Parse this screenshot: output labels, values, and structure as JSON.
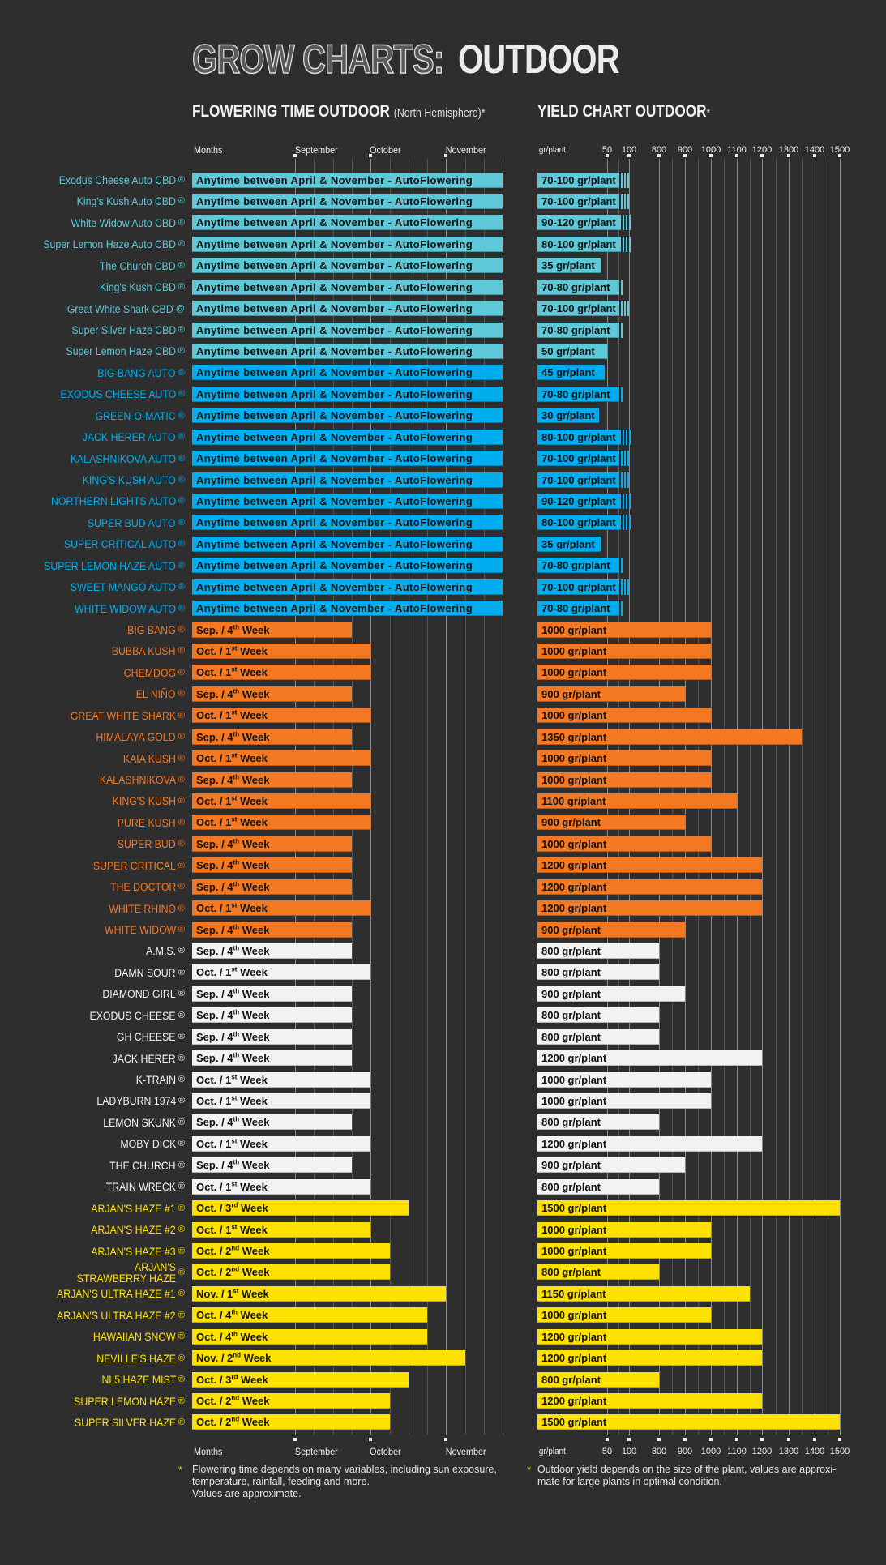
{
  "header": {
    "title_outline": "GROW CHARTS:",
    "title_solid": "OUTDOOR"
  },
  "registered_mark": "®",
  "groups": {
    "cbd": {
      "color": "#5ec8d8"
    },
    "auto": {
      "color": "#00aeef"
    },
    "orange": {
      "color": "#f47721"
    },
    "white": {
      "color": "#f2f2f2"
    },
    "yellow": {
      "color": "#ffe100"
    }
  },
  "chart_data": {
    "type": "bar",
    "flowering": {
      "title": "FLOWERING TIME OUTDOOR",
      "subtitle": "(North Hemisphere)*",
      "xlabel": "Months",
      "x_ticks": [
        "September",
        "October",
        "November"
      ]
    },
    "yield": {
      "title": "YIELD CHART OUTDOOR",
      "title_mark": "*",
      "xlabel": "gr/plant",
      "x_ticks": [
        50,
        100,
        800,
        900,
        1000,
        1100,
        1200,
        1300,
        1400,
        1500
      ]
    },
    "rows": [
      {
        "group": "cbd",
        "name": "Exodus Cheese Auto CBD",
        "flowering": "Anytime between April & November - AutoFlowering",
        "yield": "70-100 gr/plant",
        "min": 70,
        "max": 100
      },
      {
        "group": "cbd",
        "name": "King's Kush Auto CBD",
        "flowering": "Anytime between April & November - AutoFlowering",
        "yield": "70-100 gr/plant",
        "min": 70,
        "max": 100
      },
      {
        "group": "cbd",
        "name": "White Widow Auto CBD",
        "flowering": "Anytime between April & November - AutoFlowering",
        "yield": "90-120 gr/plant",
        "min": 90,
        "max": 120
      },
      {
        "group": "cbd",
        "name": "Super Lemon Haze Auto CBD",
        "flowering": "Anytime between April & November - AutoFlowering",
        "yield": "80-100 gr/plant",
        "min": 80,
        "max": 100
      },
      {
        "group": "cbd",
        "name": "The Church CBD",
        "flowering": "Anytime between April & November - AutoFlowering",
        "yield": "35 gr/plant",
        "min": 35,
        "max": 35
      },
      {
        "group": "cbd",
        "name": "King's Kush CBD",
        "flowering": "Anytime between April & November - AutoFlowering",
        "yield": "70-80 gr/plant",
        "min": 70,
        "max": 80
      },
      {
        "group": "cbd",
        "name": "Great White Shark CBD",
        "mark": "@",
        "flowering": "Anytime between April & November - AutoFlowering",
        "yield": "70-100 gr/plant",
        "min": 70,
        "max": 100
      },
      {
        "group": "cbd",
        "name": "Super Silver Haze CBD",
        "flowering": "Anytime between April & November - AutoFlowering",
        "yield": "70-80 gr/plant",
        "min": 70,
        "max": 80
      },
      {
        "group": "cbd",
        "name": "Super Lemon Haze CBD",
        "flowering": "Anytime between April & November - AutoFlowering",
        "yield": "50 gr/plant",
        "min": 50,
        "max": 50
      },
      {
        "group": "auto",
        "name": "BIG BANG AUTO",
        "flowering": "Anytime between April & November - AutoFlowering",
        "yield": "45 gr/plant",
        "min": 45,
        "max": 45
      },
      {
        "group": "auto",
        "name": "EXODUS CHEESE AUTO",
        "flowering": "Anytime between April & November - AutoFlowering",
        "yield": "70-80 gr/plant",
        "min": 70,
        "max": 80
      },
      {
        "group": "auto",
        "name": "GREEN-O-MATIC",
        "flowering": "Anytime between April & November - AutoFlowering",
        "yield": "30 gr/plant",
        "min": 30,
        "max": 30
      },
      {
        "group": "auto",
        "name": "JACK HERER AUTO",
        "flowering": "Anytime between April & November - AutoFlowering",
        "yield": "80-100 gr/plant",
        "min": 80,
        "max": 100
      },
      {
        "group": "auto",
        "name": "KALASHNIKOVA AUTO",
        "flowering": "Anytime between April & November - AutoFlowering",
        "yield": "70-100 gr/plant",
        "min": 70,
        "max": 100
      },
      {
        "group": "auto",
        "name": "KING'S KUSH AUTO",
        "flowering": "Anytime between April & November - AutoFlowering",
        "yield": "70-100 gr/plant",
        "min": 70,
        "max": 100
      },
      {
        "group": "auto",
        "name": "NORTHERN LIGHTS AUTO",
        "flowering": "Anytime between April & November - AutoFlowering",
        "yield": "90-120 gr/plant",
        "min": 90,
        "max": 120
      },
      {
        "group": "auto",
        "name": "SUPER BUD AUTO",
        "flowering": "Anytime between April & November - AutoFlowering",
        "yield": "80-100 gr/plant",
        "min": 80,
        "max": 100
      },
      {
        "group": "auto",
        "name": "SUPER CRITICAL AUTO",
        "flowering": "Anytime between April & November - AutoFlowering",
        "yield": "35 gr/plant",
        "min": 35,
        "max": 35
      },
      {
        "group": "auto",
        "name": "SUPER LEMON HAZE AUTO",
        "flowering": "Anytime between April & November - AutoFlowering",
        "yield": "70-80 gr/plant",
        "min": 70,
        "max": 80
      },
      {
        "group": "auto",
        "name": "SWEET MANGO AUTO",
        "flowering": "Anytime between April & November - AutoFlowering",
        "yield": "70-100 gr/plant",
        "min": 70,
        "max": 100
      },
      {
        "group": "auto",
        "name": "WHITE WIDOW AUTO",
        "flowering": "Anytime between April & November - AutoFlowering",
        "yield": "70-80 gr/plant",
        "min": 70,
        "max": 80
      },
      {
        "group": "orange",
        "name": "BIG BANG",
        "flowering": "Sep. / 4th Week",
        "yield": "1000 gr/plant",
        "min": 1000,
        "max": 1000
      },
      {
        "group": "orange",
        "name": "BUBBA KUSH",
        "flowering": "Oct. / 1st Week",
        "yield": "1000 gr/plant",
        "min": 1000,
        "max": 1000
      },
      {
        "group": "orange",
        "name": "CHEMDOG",
        "flowering": "Oct. / 1st Week",
        "yield": "1000 gr/plant",
        "min": 1000,
        "max": 1000
      },
      {
        "group": "orange",
        "name": "EL NIÑO",
        "flowering": "Sep. / 4th Week",
        "yield": "900 gr/plant",
        "min": 900,
        "max": 900
      },
      {
        "group": "orange",
        "name": "GREAT WHITE SHARK",
        "flowering": "Oct. / 1st Week",
        "yield": "1000 gr/plant",
        "min": 1000,
        "max": 1000
      },
      {
        "group": "orange",
        "name": "HIMALAYA GOLD",
        "flowering": "Sep. / 4th Week",
        "yield": "1350 gr/plant",
        "min": 1350,
        "max": 1350
      },
      {
        "group": "orange",
        "name": "KAIA KUSH",
        "flowering": "Oct. / 1st Week",
        "yield": "1000 gr/plant",
        "min": 1000,
        "max": 1000
      },
      {
        "group": "orange",
        "name": "KALASHNIKOVA",
        "flowering": "Sep. / 4th Week",
        "yield": "1000 gr/plant",
        "min": 1000,
        "max": 1000
      },
      {
        "group": "orange",
        "name": "KING'S KUSH",
        "flowering": "Oct. / 1st Week",
        "yield": "1100 gr/plant",
        "min": 1100,
        "max": 1100
      },
      {
        "group": "orange",
        "name": "PURE KUSH",
        "flowering": "Oct. / 1st Week",
        "yield": "900 gr/plant",
        "min": 900,
        "max": 900
      },
      {
        "group": "orange",
        "name": "SUPER BUD",
        "flowering": "Sep. / 4th Week",
        "yield": "1000 gr/plant",
        "min": 1000,
        "max": 1000
      },
      {
        "group": "orange",
        "name": "SUPER CRITICAL",
        "flowering": "Sep. / 4th Week",
        "yield": "1200 gr/plant",
        "min": 1200,
        "max": 1200
      },
      {
        "group": "orange",
        "name": "THE DOCTOR",
        "flowering": "Sep. / 4th Week",
        "yield": "1200 gr/plant",
        "min": 1200,
        "max": 1200
      },
      {
        "group": "orange",
        "name": "WHITE RHINO",
        "flowering": "Oct. / 1st Week",
        "yield": "1200 gr/plant",
        "min": 1200,
        "max": 1200
      },
      {
        "group": "orange",
        "name": "WHITE WIDOW",
        "flowering": "Sep. / 4th Week",
        "yield": "900 gr/plant",
        "min": 900,
        "max": 900
      },
      {
        "group": "white",
        "name": "A.M.S.",
        "flowering": "Sep. / 4th Week",
        "yield": "800 gr/plant",
        "min": 800,
        "max": 800
      },
      {
        "group": "white",
        "name": "DAMN SOUR",
        "flowering": "Oct. / 1st Week",
        "yield": "800 gr/plant",
        "min": 800,
        "max": 800
      },
      {
        "group": "white",
        "name": "DIAMOND GIRL",
        "flowering": "Sep. / 4th Week",
        "yield": "900 gr/plant",
        "min": 900,
        "max": 900
      },
      {
        "group": "white",
        "name": "EXODUS CHEESE",
        "flowering": "Sep. / 4th Week",
        "yield": "800 gr/plant",
        "min": 800,
        "max": 800
      },
      {
        "group": "white",
        "name": "GH CHEESE",
        "flowering": "Sep. / 4th Week",
        "yield": "800 gr/plant",
        "min": 800,
        "max": 800
      },
      {
        "group": "white",
        "name": "JACK HERER",
        "flowering": "Sep. / 4th Week",
        "yield": "1200 gr/plant",
        "min": 1200,
        "max": 1200
      },
      {
        "group": "white",
        "name": "K-TRAIN",
        "flowering": "Oct. / 1st Week",
        "yield": "1000 gr/plant",
        "min": 1000,
        "max": 1000
      },
      {
        "group": "white",
        "name": "LADYBURN 1974",
        "flowering": "Oct. / 1st Week",
        "yield": "1000 gr/plant",
        "min": 1000,
        "max": 1000
      },
      {
        "group": "white",
        "name": "LEMON SKUNK",
        "flowering": "Sep. / 4th Week",
        "yield": "800 gr/plant",
        "min": 800,
        "max": 800
      },
      {
        "group": "white",
        "name": "MOBY DICK",
        "flowering": "Oct. / 1st Week",
        "yield": "1200 gr/plant",
        "min": 1200,
        "max": 1200
      },
      {
        "group": "white",
        "name": "THE CHURCH",
        "flowering": "Sep. / 4th Week",
        "yield": "900 gr/plant",
        "min": 900,
        "max": 900
      },
      {
        "group": "white",
        "name": "TRAIN WRECK",
        "flowering": "Oct. / 1st Week",
        "yield": "800 gr/plant",
        "min": 800,
        "max": 800
      },
      {
        "group": "yellow",
        "name": "ARJAN'S HAZE #1",
        "flowering": "Oct. / 3rd Week",
        "yield": "1500 gr/plant",
        "min": 1500,
        "max": 1500
      },
      {
        "group": "yellow",
        "name": "ARJAN'S HAZE #2",
        "flowering": "Oct. / 1st Week",
        "yield": "1000 gr/plant",
        "min": 1000,
        "max": 1000
      },
      {
        "group": "yellow",
        "name": "ARJAN'S HAZE #3",
        "flowering": "Oct. / 2nd Week",
        "yield": "1000 gr/plant",
        "min": 1000,
        "max": 1000
      },
      {
        "group": "yellow",
        "name": "ARJAN'S\nSTRAWBERRY HAZE",
        "flowering": "Oct. / 2nd Week",
        "yield": "800 gr/plant",
        "min": 800,
        "max": 800
      },
      {
        "group": "yellow",
        "name": "ARJAN'S ULTRA HAZE #1",
        "flowering": "Nov. / 1st Week",
        "yield": "1150 gr/plant",
        "min": 1150,
        "max": 1150
      },
      {
        "group": "yellow",
        "name": "ARJAN'S ULTRA HAZE #2",
        "flowering": "Oct. / 4th Week",
        "yield": "1000 gr/plant",
        "min": 1000,
        "max": 1000
      },
      {
        "group": "yellow",
        "name": "HAWAIIAN SNOW",
        "flowering": "Oct. / 4th Week",
        "yield": "1200 gr/plant",
        "min": 1200,
        "max": 1200
      },
      {
        "group": "yellow",
        "name": "NEVILLE'S HAZE",
        "flowering": "Nov. / 2nd Week",
        "yield": "1200 gr/plant",
        "min": 1200,
        "max": 1200
      },
      {
        "group": "yellow",
        "name": "NL5 HAZE MIST",
        "flowering": "Oct. / 3rd Week",
        "yield": "800 gr/plant",
        "min": 800,
        "max": 800
      },
      {
        "group": "yellow",
        "name": "SUPER LEMON HAZE",
        "flowering": "Oct. / 2nd Week",
        "yield": "1200 gr/plant",
        "min": 1200,
        "max": 1200
      },
      {
        "group": "yellow",
        "name": "SUPER SILVER HAZE",
        "flowering": "Oct. / 2nd Week",
        "yield": "1500 gr/plant",
        "min": 1500,
        "max": 1500
      }
    ]
  },
  "footnotes": {
    "star": "*",
    "flowering": "Flowering time depends on many variables, including sun exposure,\ntemperature, rainfall, feeding and more.\nValues are approximate.",
    "yield": "Outdoor yield depends on the size of the plant, values are approxi-\nmate for large plants in optimal condition."
  }
}
